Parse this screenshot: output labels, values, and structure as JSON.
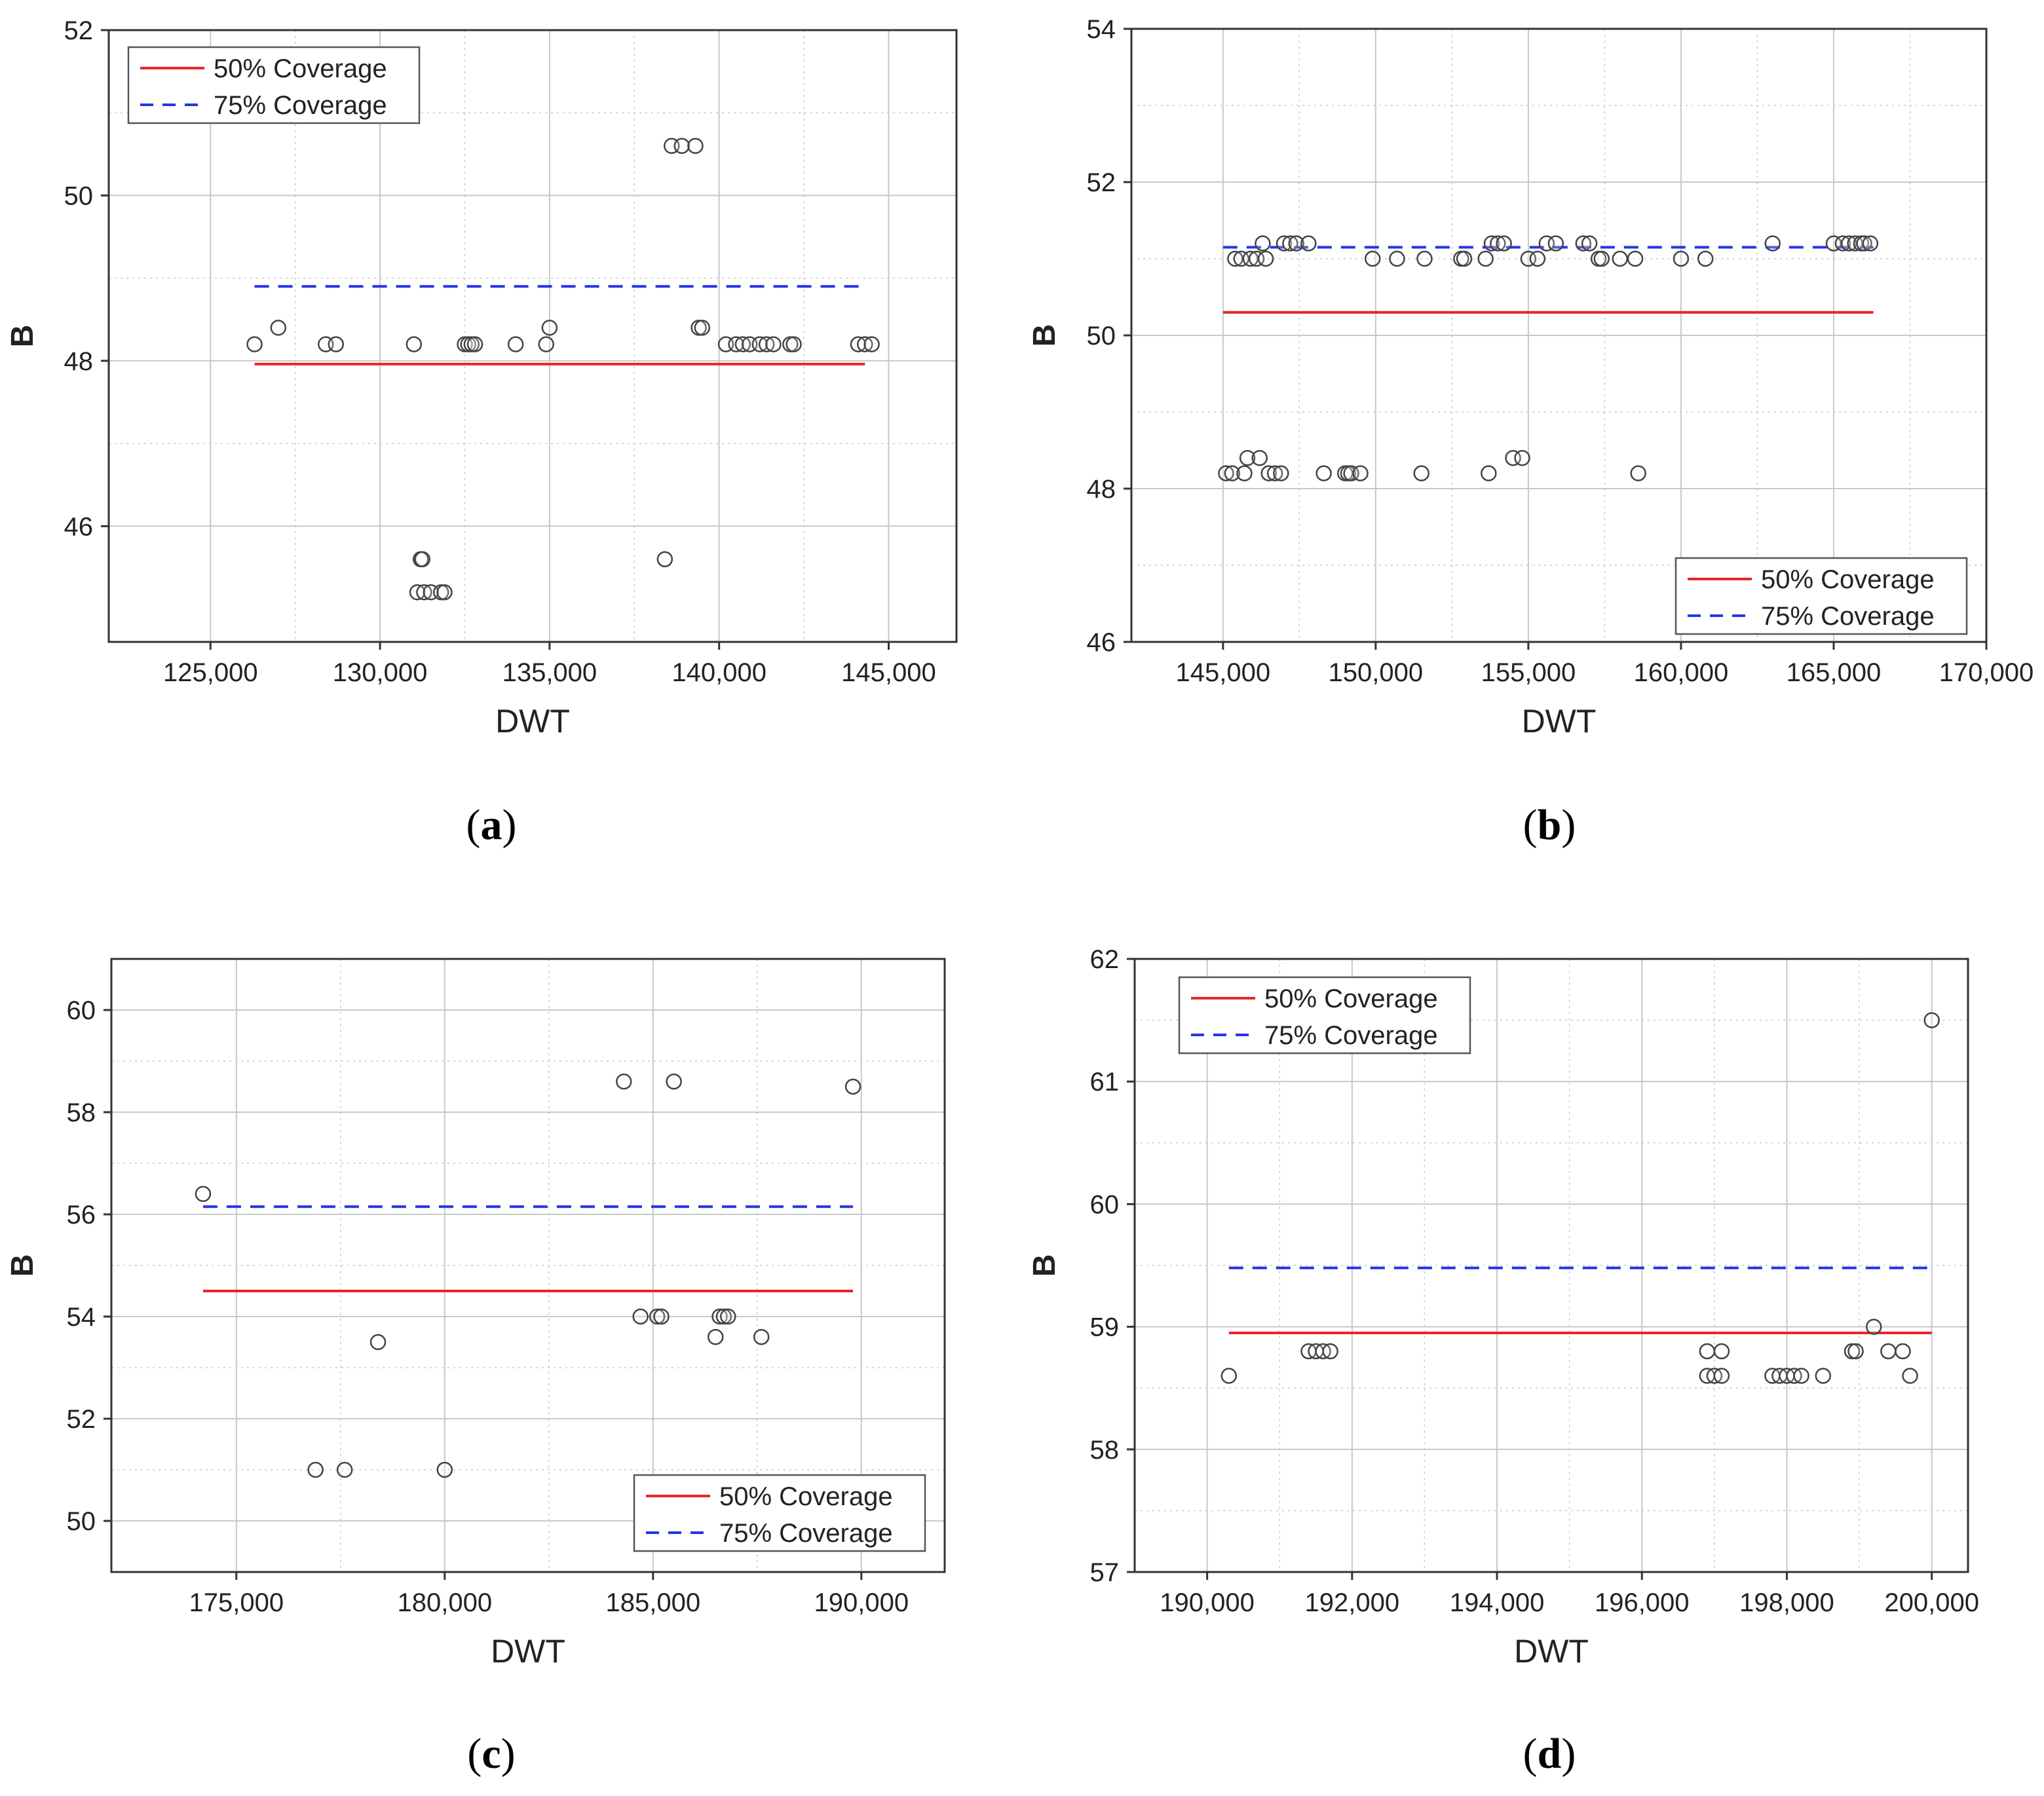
{
  "colors": {
    "fifty": "#e8262b",
    "seventyfive": "#2633e6",
    "grid": "#c8c8c8",
    "axis": "#333333",
    "marker": "#444444"
  },
  "chart_data": [
    {
      "id": "a",
      "type": "scatter",
      "caption": "a",
      "xlabel": "DWT",
      "ylabel": "B",
      "xlim": [
        122000,
        147000
      ],
      "ylim": [
        44.6,
        52
      ],
      "xticks": [
        125000,
        130000,
        135000,
        140000,
        145000
      ],
      "xtick_labels": [
        "125,000",
        "130,000",
        "135,000",
        "140,000",
        "145,000"
      ],
      "yticks": [
        46,
        48,
        50,
        52
      ],
      "ytick_labels": [
        "46",
        "48",
        "50",
        "52"
      ],
      "legend": {
        "position": "top-left",
        "entries": [
          {
            "label": "50% Coverage",
            "style": "solid",
            "color": "#e8262b"
          },
          {
            "label": "75% Coverage",
            "style": "dashed",
            "color": "#2633e6"
          }
        ]
      },
      "lines": [
        {
          "name": "50% Coverage",
          "x": [
            126300,
            144300
          ],
          "y": 47.96
        },
        {
          "name": "75% Coverage",
          "x": [
            126300,
            144300
          ],
          "y": 48.9
        }
      ],
      "points": [
        [
          126300,
          48.2
        ],
        [
          127000,
          48.4
        ],
        [
          128400,
          48.2
        ],
        [
          128700,
          48.2
        ],
        [
          131000,
          48.2
        ],
        [
          131100,
          45.2
        ],
        [
          131200,
          45.6
        ],
        [
          131250,
          45.6
        ],
        [
          131300,
          45.2
        ],
        [
          131500,
          45.2
        ],
        [
          131800,
          45.2
        ],
        [
          131900,
          45.2
        ],
        [
          132500,
          48.2
        ],
        [
          132600,
          48.2
        ],
        [
          132700,
          48.2
        ],
        [
          132800,
          48.2
        ],
        [
          134000,
          48.2
        ],
        [
          134900,
          48.2
        ],
        [
          135000,
          48.4
        ],
        [
          138400,
          45.6
        ],
        [
          138600,
          50.6
        ],
        [
          138900,
          50.6
        ],
        [
          139300,
          50.6
        ],
        [
          139400,
          48.4
        ],
        [
          139500,
          48.4
        ],
        [
          140200,
          48.2
        ],
        [
          140500,
          48.2
        ],
        [
          140700,
          48.2
        ],
        [
          140900,
          48.2
        ],
        [
          141200,
          48.2
        ],
        [
          141400,
          48.2
        ],
        [
          141600,
          48.2
        ],
        [
          142100,
          48.2
        ],
        [
          142200,
          48.2
        ],
        [
          144100,
          48.2
        ],
        [
          144300,
          48.2
        ],
        [
          144500,
          48.2
        ]
      ]
    },
    {
      "id": "b",
      "type": "scatter",
      "caption": "b",
      "xlabel": "DWT",
      "ylabel": "B",
      "xlim": [
        142000,
        170000
      ],
      "ylim": [
        46,
        54
      ],
      "xticks": [
        145000,
        150000,
        155000,
        160000,
        165000,
        170000
      ],
      "xtick_labels": [
        "145,000",
        "150,000",
        "155,000",
        "160,000",
        "165,000",
        "170,000"
      ],
      "yticks": [
        46,
        48,
        50,
        52,
        54
      ],
      "ytick_labels": [
        "46",
        "48",
        "50",
        "52",
        "54"
      ],
      "legend": {
        "position": "bottom-right",
        "entries": [
          {
            "label": "50% Coverage",
            "style": "solid",
            "color": "#e8262b"
          },
          {
            "label": "75% Coverage",
            "style": "dashed",
            "color": "#2633e6"
          }
        ]
      },
      "lines": [
        {
          "name": "50% Coverage",
          "x": [
            145000,
            166300
          ],
          "y": 50.3
        },
        {
          "name": "75% Coverage",
          "x": [
            145000,
            166300
          ],
          "y": 51.15
        }
      ],
      "points": [
        [
          145100,
          48.2
        ],
        [
          145300,
          48.2
        ],
        [
          145400,
          51.0
        ],
        [
          145600,
          51.0
        ],
        [
          145700,
          48.2
        ],
        [
          145800,
          48.4
        ],
        [
          145900,
          51.0
        ],
        [
          146100,
          51.0
        ],
        [
          146200,
          48.4
        ],
        [
          146300,
          51.2
        ],
        [
          146400,
          51.0
        ],
        [
          146500,
          48.2
        ],
        [
          146700,
          48.2
        ],
        [
          146900,
          48.2
        ],
        [
          147000,
          51.2
        ],
        [
          147200,
          51.2
        ],
        [
          147400,
          51.2
        ],
        [
          147800,
          51.2
        ],
        [
          148300,
          48.2
        ],
        [
          149000,
          48.2
        ],
        [
          149100,
          48.2
        ],
        [
          149200,
          48.2
        ],
        [
          149500,
          48.2
        ],
        [
          149900,
          51.0
        ],
        [
          150700,
          51.0
        ],
        [
          151500,
          48.2
        ],
        [
          151600,
          51.0
        ],
        [
          152800,
          51.0
        ],
        [
          152900,
          51.0
        ],
        [
          153600,
          51.0
        ],
        [
          153700,
          48.2
        ],
        [
          153800,
          51.2
        ],
        [
          154000,
          51.2
        ],
        [
          154200,
          51.2
        ],
        [
          154500,
          48.4
        ],
        [
          154800,
          48.4
        ],
        [
          155000,
          51.0
        ],
        [
          155300,
          51.0
        ],
        [
          155600,
          51.2
        ],
        [
          155900,
          51.2
        ],
        [
          156800,
          51.2
        ],
        [
          157000,
          51.2
        ],
        [
          157300,
          51.0
        ],
        [
          157400,
          51.0
        ],
        [
          158000,
          51.0
        ],
        [
          158500,
          51.0
        ],
        [
          158600,
          48.2
        ],
        [
          160000,
          51.0
        ],
        [
          160800,
          51.0
        ],
        [
          163000,
          51.2
        ],
        [
          165000,
          51.2
        ],
        [
          165300,
          51.2
        ],
        [
          165500,
          51.2
        ],
        [
          165700,
          51.2
        ],
        [
          165900,
          51.2
        ],
        [
          166000,
          51.2
        ],
        [
          166200,
          51.2
        ]
      ]
    },
    {
      "id": "c",
      "type": "scatter",
      "caption": "c",
      "xlabel": "DWT",
      "ylabel": "B",
      "xlim": [
        172000,
        192000
      ],
      "ylim": [
        49,
        61
      ],
      "xticks": [
        175000,
        180000,
        185000,
        190000
      ],
      "xtick_labels": [
        "175,000",
        "180,000",
        "185,000",
        "190,000"
      ],
      "yticks": [
        50,
        52,
        54,
        56,
        58,
        60
      ],
      "ytick_labels": [
        "50",
        "52",
        "54",
        "56",
        "58",
        "60"
      ],
      "legend": {
        "position": "bottom-right",
        "entries": [
          {
            "label": "50% Coverage",
            "style": "solid",
            "color": "#e8262b"
          },
          {
            "label": "75% Coverage",
            "style": "dashed",
            "color": "#2633e6"
          }
        ]
      },
      "lines": [
        {
          "name": "50% Coverage",
          "x": [
            174200,
            189800
          ],
          "y": 54.5
        },
        {
          "name": "75% Coverage",
          "x": [
            174200,
            189800
          ],
          "y": 56.15
        }
      ],
      "points": [
        [
          174200,
          56.4
        ],
        [
          176900,
          51.0
        ],
        [
          177600,
          51.0
        ],
        [
          178400,
          53.5
        ],
        [
          180000,
          51.0
        ],
        [
          184300,
          58.6
        ],
        [
          184700,
          54.0
        ],
        [
          185100,
          54.0
        ],
        [
          185200,
          54.0
        ],
        [
          185500,
          58.6
        ],
        [
          186500,
          53.6
        ],
        [
          186600,
          54.0
        ],
        [
          186700,
          54.0
        ],
        [
          186800,
          54.0
        ],
        [
          187600,
          53.6
        ],
        [
          189800,
          58.5
        ]
      ]
    },
    {
      "id": "d",
      "type": "scatter",
      "caption": "d",
      "xlabel": "DWT",
      "ylabel": "B",
      "xlim": [
        189000,
        200500
      ],
      "ylim": [
        57,
        62
      ],
      "xticks": [
        190000,
        192000,
        194000,
        196000,
        198000,
        200000
      ],
      "xtick_labels": [
        "190,000",
        "192,000",
        "194,000",
        "196,000",
        "198,000",
        "200,000"
      ],
      "yticks": [
        57,
        58,
        59,
        60,
        61,
        62
      ],
      "ytick_labels": [
        "57",
        "58",
        "59",
        "60",
        "61",
        "62"
      ],
      "legend": {
        "position": "top-left",
        "entries": [
          {
            "label": "50% Coverage",
            "style": "solid",
            "color": "#e8262b"
          },
          {
            "label": "75% Coverage",
            "style": "dashed",
            "color": "#2633e6"
          }
        ]
      },
      "lines": [
        {
          "name": "50% Coverage",
          "x": [
            190300,
            200000
          ],
          "y": 58.95
        },
        {
          "name": "75% Coverage",
          "x": [
            190300,
            200000
          ],
          "y": 59.48
        }
      ],
      "points": [
        [
          190300,
          58.6
        ],
        [
          191400,
          58.8
        ],
        [
          191500,
          58.8
        ],
        [
          191600,
          58.8
        ],
        [
          191700,
          58.8
        ],
        [
          196900,
          58.8
        ],
        [
          196900,
          58.6
        ],
        [
          197000,
          58.6
        ],
        [
          197100,
          58.8
        ],
        [
          197100,
          58.6
        ],
        [
          197800,
          58.6
        ],
        [
          197900,
          58.6
        ],
        [
          198000,
          58.6
        ],
        [
          198100,
          58.6
        ],
        [
          198200,
          58.6
        ],
        [
          198500,
          58.6
        ],
        [
          198900,
          58.8
        ],
        [
          198950,
          58.8
        ],
        [
          199200,
          59.0
        ],
        [
          199400,
          58.8
        ],
        [
          199600,
          58.8
        ],
        [
          199700,
          58.6
        ],
        [
          200000,
          61.5
        ]
      ]
    }
  ]
}
